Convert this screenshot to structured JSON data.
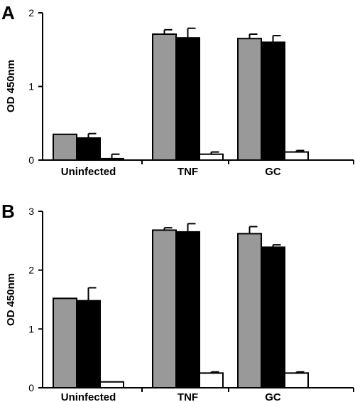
{
  "chart_data": [
    {
      "type": "bar",
      "panel": "A",
      "ylabel": "OD 450nm",
      "ylim": [
        0,
        2
      ],
      "yticks": [
        0,
        1,
        2
      ],
      "categories": [
        "Uninfected",
        "TNF",
        "GC"
      ],
      "series": [
        {
          "color": "#999999",
          "values": [
            0.35,
            1.71,
            1.65
          ],
          "errors": [
            0.0,
            0.06,
            0.06
          ]
        },
        {
          "color": "#000000",
          "values": [
            0.3,
            1.66,
            1.6
          ],
          "errors": [
            0.06,
            0.13,
            0.09
          ]
        },
        {
          "color": "#ffffff",
          "values": [
            0.02,
            0.08,
            0.11
          ],
          "errors": [
            0.06,
            0.03,
            0.02
          ]
        }
      ]
    },
    {
      "type": "bar",
      "panel": "B",
      "ylabel": "OD 450nm",
      "ylim": [
        0,
        3
      ],
      "yticks": [
        0,
        1,
        2,
        3
      ],
      "categories": [
        "Uninfected",
        "TNF",
        "GC"
      ],
      "series": [
        {
          "color": "#999999",
          "values": [
            1.52,
            2.68,
            2.62
          ],
          "errors": [
            0.0,
            0.04,
            0.12
          ]
        },
        {
          "color": "#000000",
          "values": [
            1.48,
            2.65,
            2.39
          ],
          "errors": [
            0.22,
            0.14,
            0.04
          ]
        },
        {
          "color": "#ffffff",
          "values": [
            0.1,
            0.25,
            0.25
          ],
          "errors": [
            0.0,
            0.02,
            0.02
          ]
        }
      ]
    }
  ]
}
